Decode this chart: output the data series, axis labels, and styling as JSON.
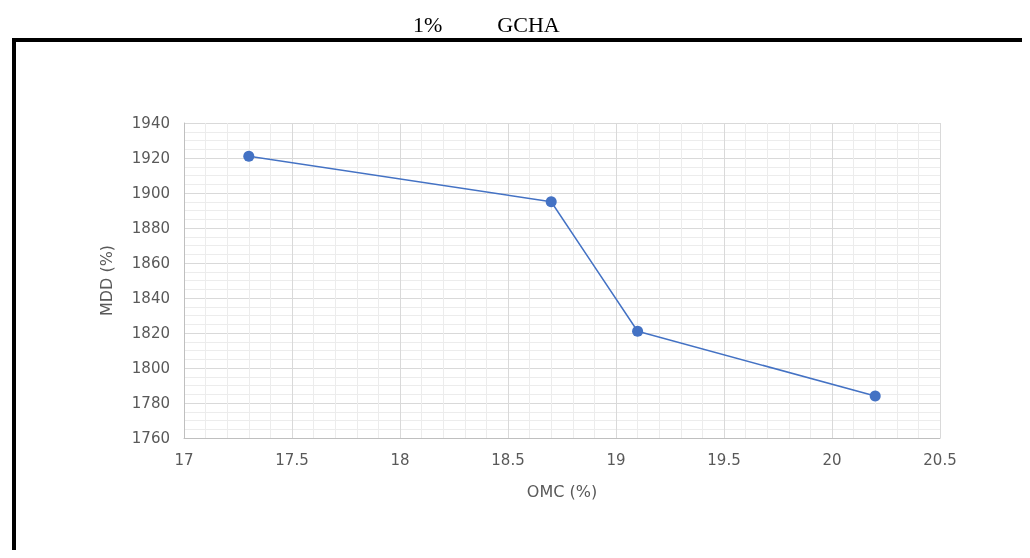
{
  "chart_data": {
    "type": "line",
    "title": "1%          GCHA",
    "xlabel": "OMC (%)",
    "ylabel": "MDD (%)",
    "x": [
      17.3,
      18.7,
      19.1,
      20.2
    ],
    "series": [
      {
        "color": "#4472c4",
        "values": [
          1921,
          1895,
          1821,
          1784
        ]
      }
    ],
    "xlim": [
      17,
      20.5
    ],
    "xticks": [
      17,
      17.5,
      18,
      18.5,
      19,
      19.5,
      20,
      20.5
    ],
    "ylim": [
      1760,
      1940
    ],
    "yticks": [
      1760,
      1780,
      1800,
      1820,
      1840,
      1860,
      1880,
      1900,
      1920,
      1940
    ],
    "grid": true,
    "marker": "circle",
    "line_style": "solid"
  }
}
